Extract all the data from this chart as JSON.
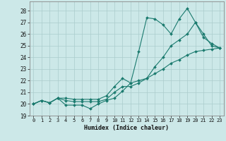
{
  "xlabel": "Humidex (Indice chaleur)",
  "xlim": [
    -0.5,
    23.5
  ],
  "ylim": [
    19,
    28.8
  ],
  "yticks": [
    19,
    20,
    21,
    22,
    23,
    24,
    25,
    26,
    27,
    28
  ],
  "xticks": [
    0,
    1,
    2,
    3,
    4,
    5,
    6,
    7,
    8,
    9,
    10,
    11,
    12,
    13,
    14,
    15,
    16,
    17,
    18,
    19,
    20,
    21,
    22,
    23
  ],
  "bg_color": "#cce8e8",
  "grid_color": "#aacccc",
  "line_color": "#1a7a6e",
  "line1_x": [
    0,
    1,
    2,
    3,
    4,
    5,
    6,
    7,
    8,
    9,
    10,
    11,
    12,
    13,
    14,
    15,
    16,
    17,
    18,
    19,
    20,
    21,
    22,
    23
  ],
  "line1_y": [
    20.0,
    20.3,
    20.1,
    20.5,
    19.9,
    19.9,
    19.9,
    19.6,
    20.0,
    20.3,
    20.5,
    21.1,
    21.8,
    24.5,
    27.4,
    27.3,
    26.8,
    26.0,
    27.3,
    28.2,
    27.0,
    25.7,
    25.2,
    24.8
  ],
  "line2_x": [
    0,
    1,
    2,
    3,
    4,
    5,
    6,
    7,
    8,
    9,
    10,
    11,
    12,
    13,
    14,
    15,
    16,
    17,
    18,
    19,
    20,
    21,
    22,
    23
  ],
  "line2_y": [
    20.0,
    20.3,
    20.1,
    20.5,
    20.5,
    20.4,
    20.4,
    20.4,
    20.4,
    20.7,
    21.5,
    22.2,
    21.8,
    22.0,
    22.2,
    23.2,
    24.0,
    25.0,
    25.5,
    26.0,
    27.0,
    26.0,
    25.0,
    24.8
  ],
  "line3_x": [
    0,
    1,
    2,
    3,
    4,
    5,
    6,
    7,
    8,
    9,
    10,
    11,
    12,
    13,
    14,
    15,
    16,
    17,
    18,
    19,
    20,
    21,
    22,
    23
  ],
  "line3_y": [
    20.0,
    20.3,
    20.1,
    20.5,
    20.3,
    20.2,
    20.2,
    20.2,
    20.2,
    20.4,
    21.0,
    21.5,
    21.5,
    21.8,
    22.2,
    22.6,
    23.0,
    23.5,
    23.8,
    24.2,
    24.5,
    24.6,
    24.7,
    24.8
  ]
}
